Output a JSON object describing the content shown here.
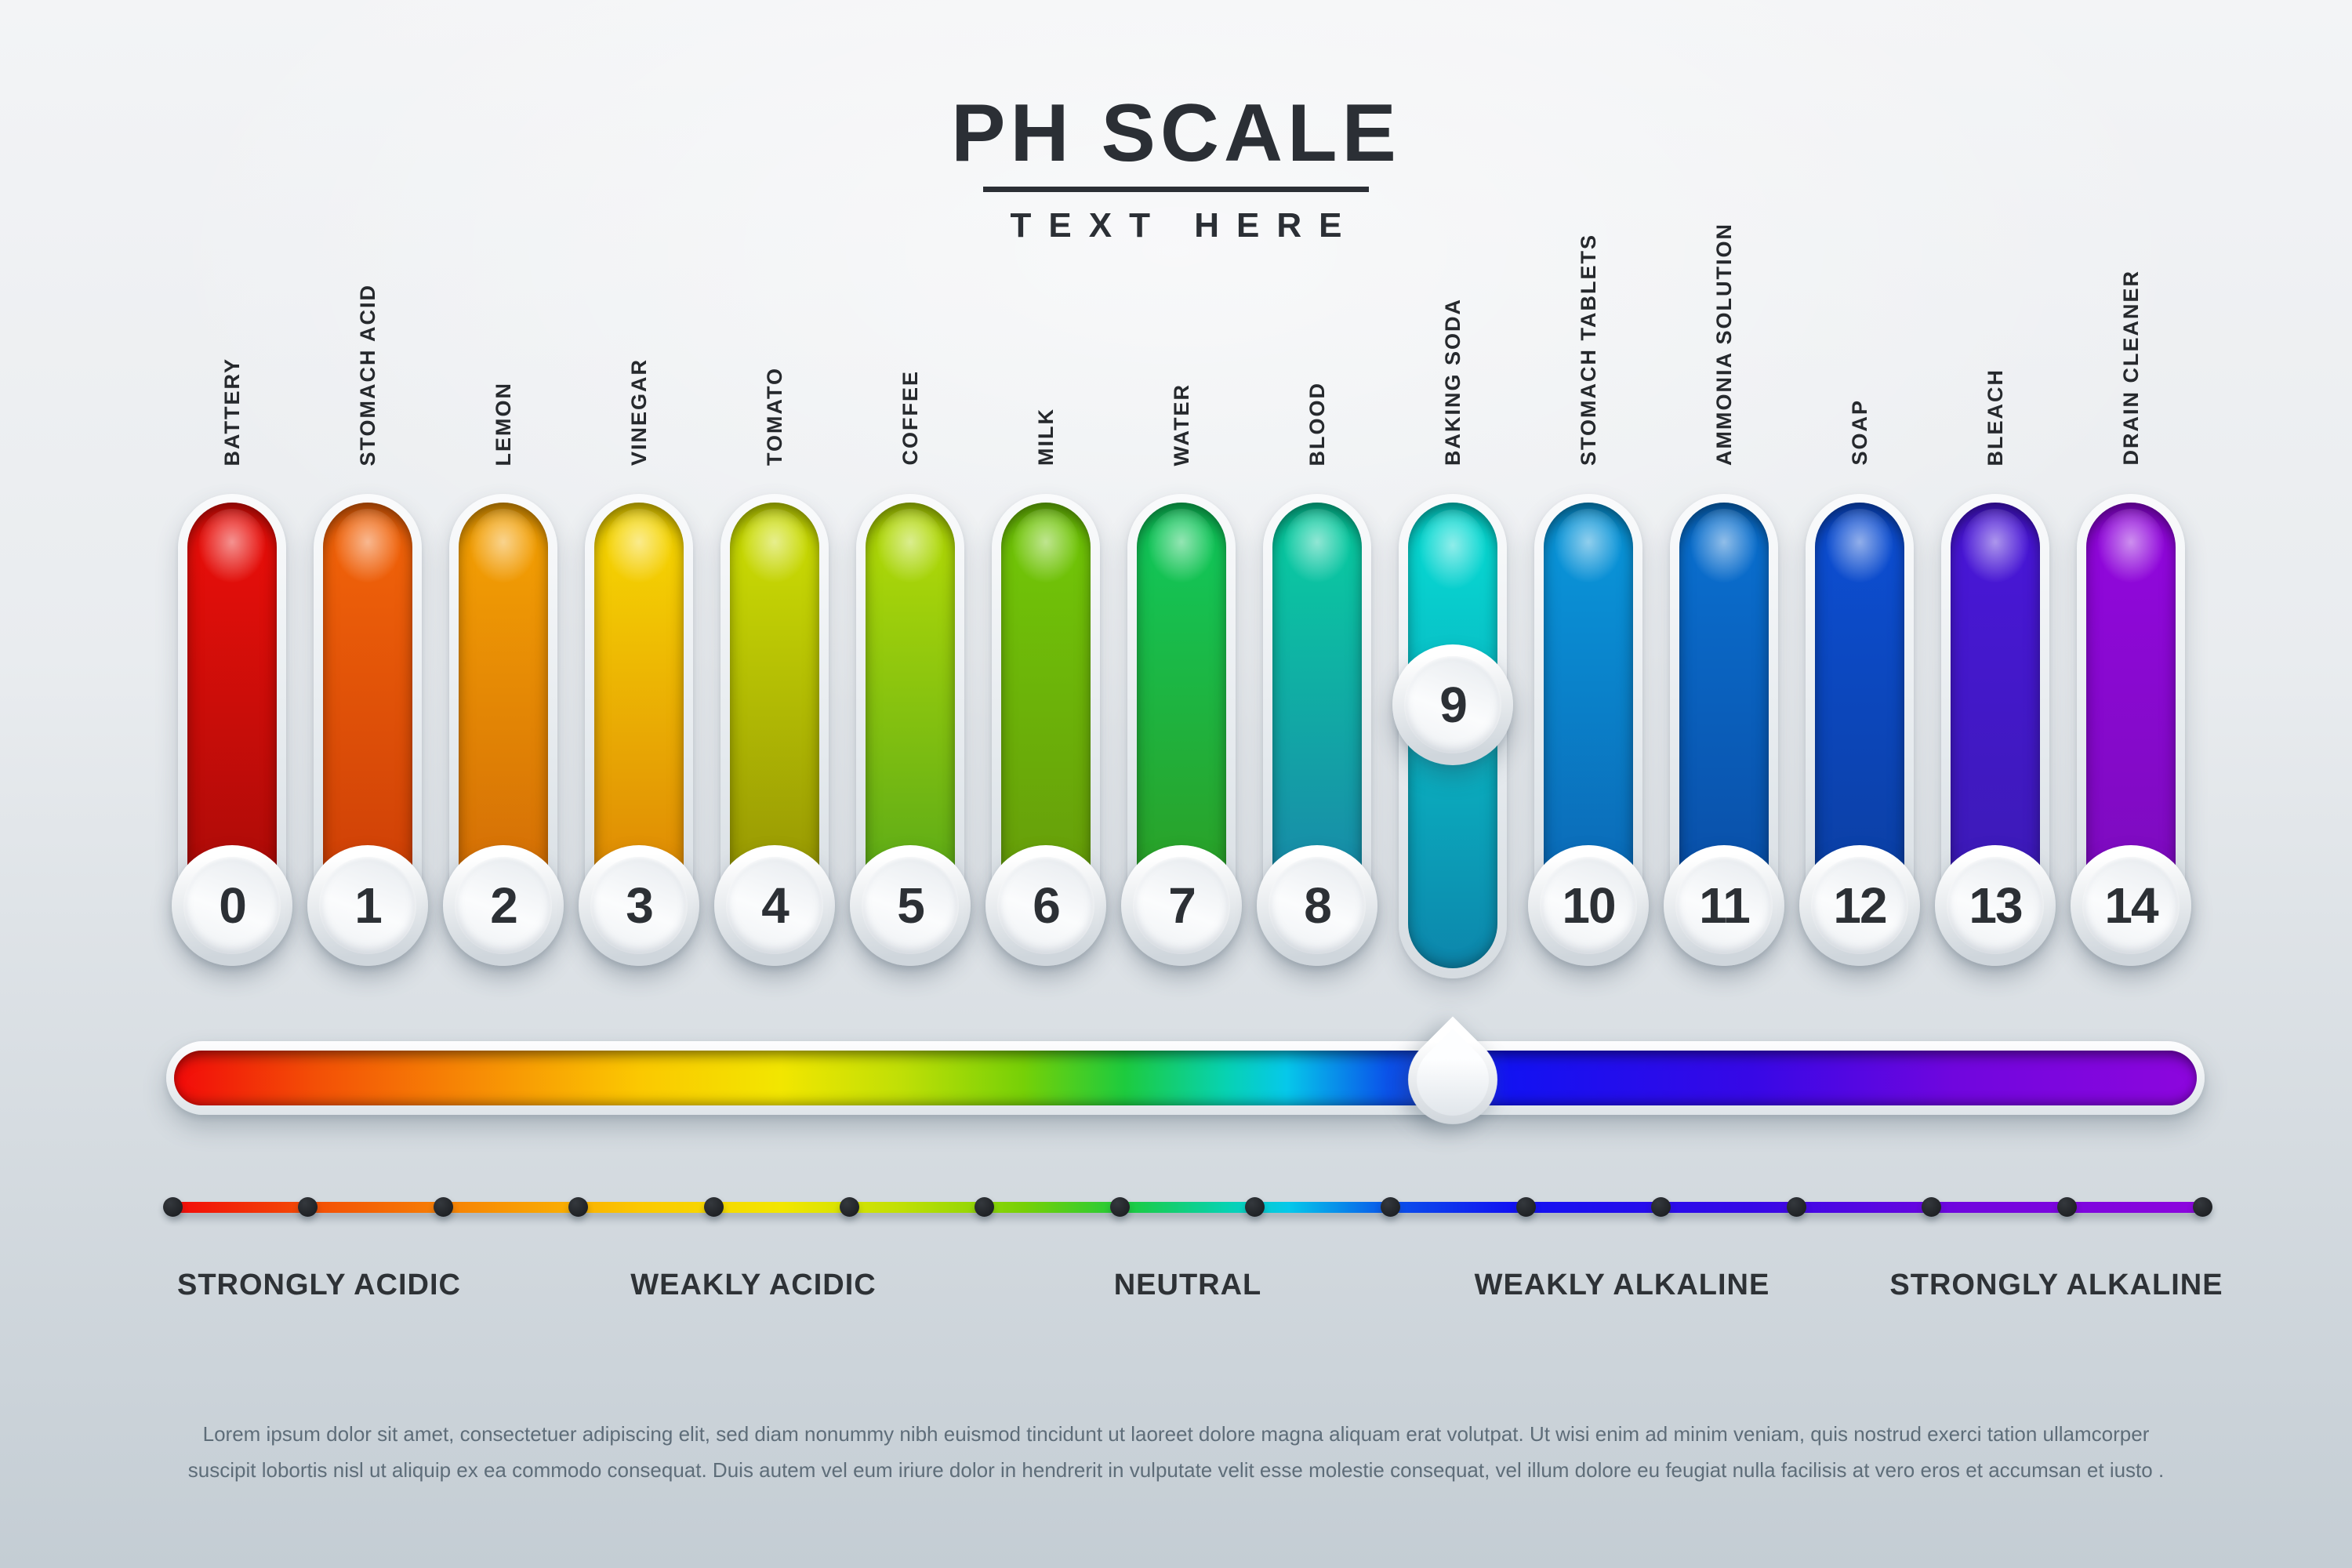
{
  "header": {
    "title": "PH SCALE",
    "subtitle": "TEXT HERE"
  },
  "scale": {
    "selected_ph": "9",
    "items": [
      {
        "ph": "0",
        "label": "BATTERY",
        "color_top": "#ee0f0a",
        "color_bottom": "#a30b08"
      },
      {
        "ph": "1",
        "label": "STOMACH ACID",
        "color_top": "#f4660a",
        "color_bottom": "#c93a06"
      },
      {
        "ph": "2",
        "label": "LEMON",
        "color_top": "#f6a404",
        "color_bottom": "#cf6606"
      },
      {
        "ph": "3",
        "label": "VINEGAR",
        "color_top": "#f8dc02",
        "color_bottom": "#db7d05"
      },
      {
        "ph": "4",
        "label": "TOMATO",
        "color_top": "#cfe204",
        "color_bottom": "#8f8c03"
      },
      {
        "ph": "5",
        "label": "COFFEE",
        "color_top": "#b8dd06",
        "color_bottom": "#4fa41a"
      },
      {
        "ph": "6",
        "label": "MILK",
        "color_top": "#72ca08",
        "color_bottom": "#65970a"
      },
      {
        "ph": "7",
        "label": "WATER",
        "color_top": "#0fca5e",
        "color_bottom": "#2f9a1e"
      },
      {
        "ph": "8",
        "label": "BLOOD",
        "color_top": "#08d0a0",
        "color_bottom": "#1b80aa"
      },
      {
        "ph": "9",
        "label": "BAKING SODA",
        "color_top": "#07dfd5",
        "color_bottom": "#0d86ac"
      },
      {
        "ph": "10",
        "label": "STOMACH TABLETS",
        "color_top": "#0a99dc",
        "color_bottom": "#0b63b2"
      },
      {
        "ph": "11",
        "label": "AMMONIA SOLUTION",
        "color_top": "#0a72d2",
        "color_bottom": "#0a4aa2"
      },
      {
        "ph": "12",
        "label": "SOAP",
        "color_top": "#0d4fd6",
        "color_bottom": "#0b3d9d"
      },
      {
        "ph": "13",
        "label": "BLEACH",
        "color_top": "#4a16da",
        "color_bottom": "#3a1bb2"
      },
      {
        "ph": "14",
        "label": "DRAIN CLEANER",
        "color_top": "#9307df",
        "color_bottom": "#7a0cba"
      }
    ]
  },
  "slider": {
    "gradient_stops": [
      "#f20a0a 0%",
      "#f34f06 7%",
      "#f78c05 15%",
      "#fbc801 23%",
      "#f2e600 30%",
      "#bfdf06 36%",
      "#76d007 42%",
      "#1dcb3e 47%",
      "#07d2b2 52%",
      "#06c8ea 55%",
      "#0a52ea 60%",
      "#1212f2 66%",
      "#3708e6 78%",
      "#7006de 88%",
      "#8d06dd 100%"
    ],
    "axis_dot_count": 16
  },
  "zones": {
    "labels": [
      "STRONGLY ACIDIC",
      "WEAKLY ACIDIC",
      "NEUTRAL",
      "WEAKLY ALKALINE",
      "STRONGLY ALKALINE"
    ]
  },
  "description": {
    "lines": [
      "Lorem ipsum dolor sit amet, consectetuer adipiscing elit, sed diam nonummy nibh euismod tincidunt ut laoreet dolore magna aliquam erat volutpat. Ut wisi enim ad minim veniam, quis nostrud exerci tation ullamcorper",
      "suscipit lobortis nisl ut aliquip ex ea commodo consequat. Duis autem vel eum iriure dolor in hendrerit in vulputate velit esse molestie consequat, vel illum dolore eu feugiat nulla facilisis at vero eros et accumsan et iusto ."
    ]
  }
}
